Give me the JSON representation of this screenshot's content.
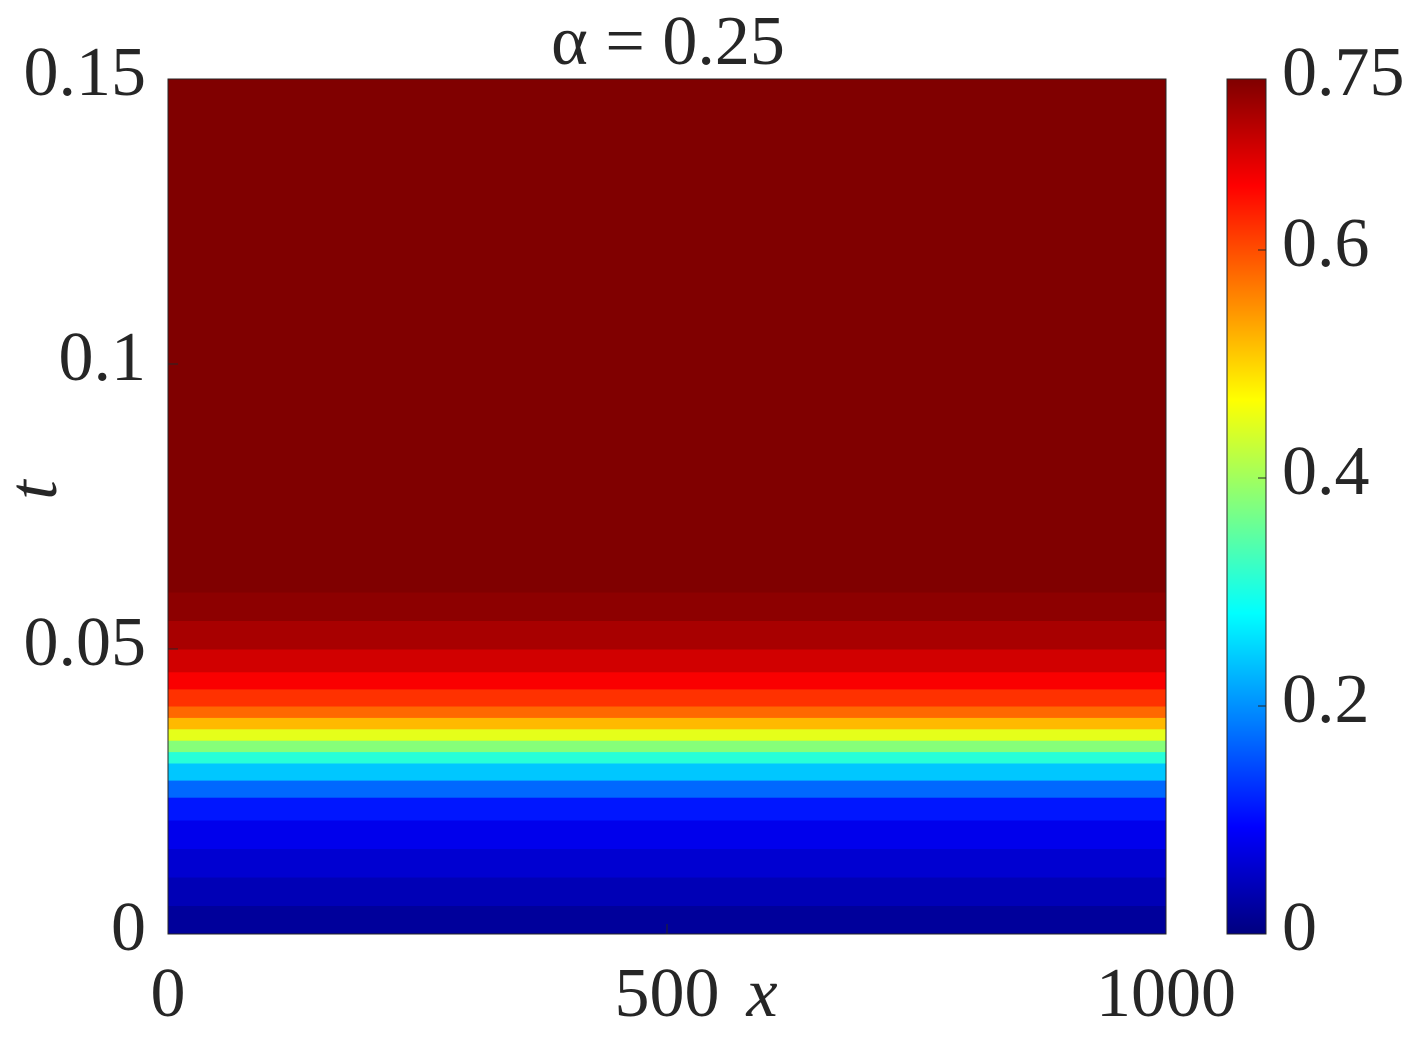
{
  "chart_data": {
    "type": "heatmap",
    "title": "α = 0.25",
    "xlabel": "x",
    "ylabel": "t",
    "xlim": [
      0,
      1000
    ],
    "xticks": [
      0,
      500,
      1000
    ],
    "ylim": [
      0,
      0.15
    ],
    "yticks": [
      0,
      0.05,
      0.1,
      0.15
    ],
    "y_edges": [
      0,
      0.005,
      0.01,
      0.015,
      0.02,
      0.024,
      0.027,
      0.03,
      0.032,
      0.034,
      0.036,
      0.038,
      0.04,
      0.043,
      0.046,
      0.05,
      0.055,
      0.06,
      0.15
    ],
    "values": [
      0.02,
      0.04,
      0.06,
      0.08,
      0.11,
      0.17,
      0.24,
      0.31,
      0.38,
      0.45,
      0.52,
      0.58,
      0.62,
      0.66,
      0.69,
      0.72,
      0.74,
      0.75
    ],
    "colormap": "jet",
    "clim": [
      0,
      0.75
    ],
    "cticks": [
      0,
      0.2,
      0.4,
      0.6,
      0.75
    ]
  }
}
